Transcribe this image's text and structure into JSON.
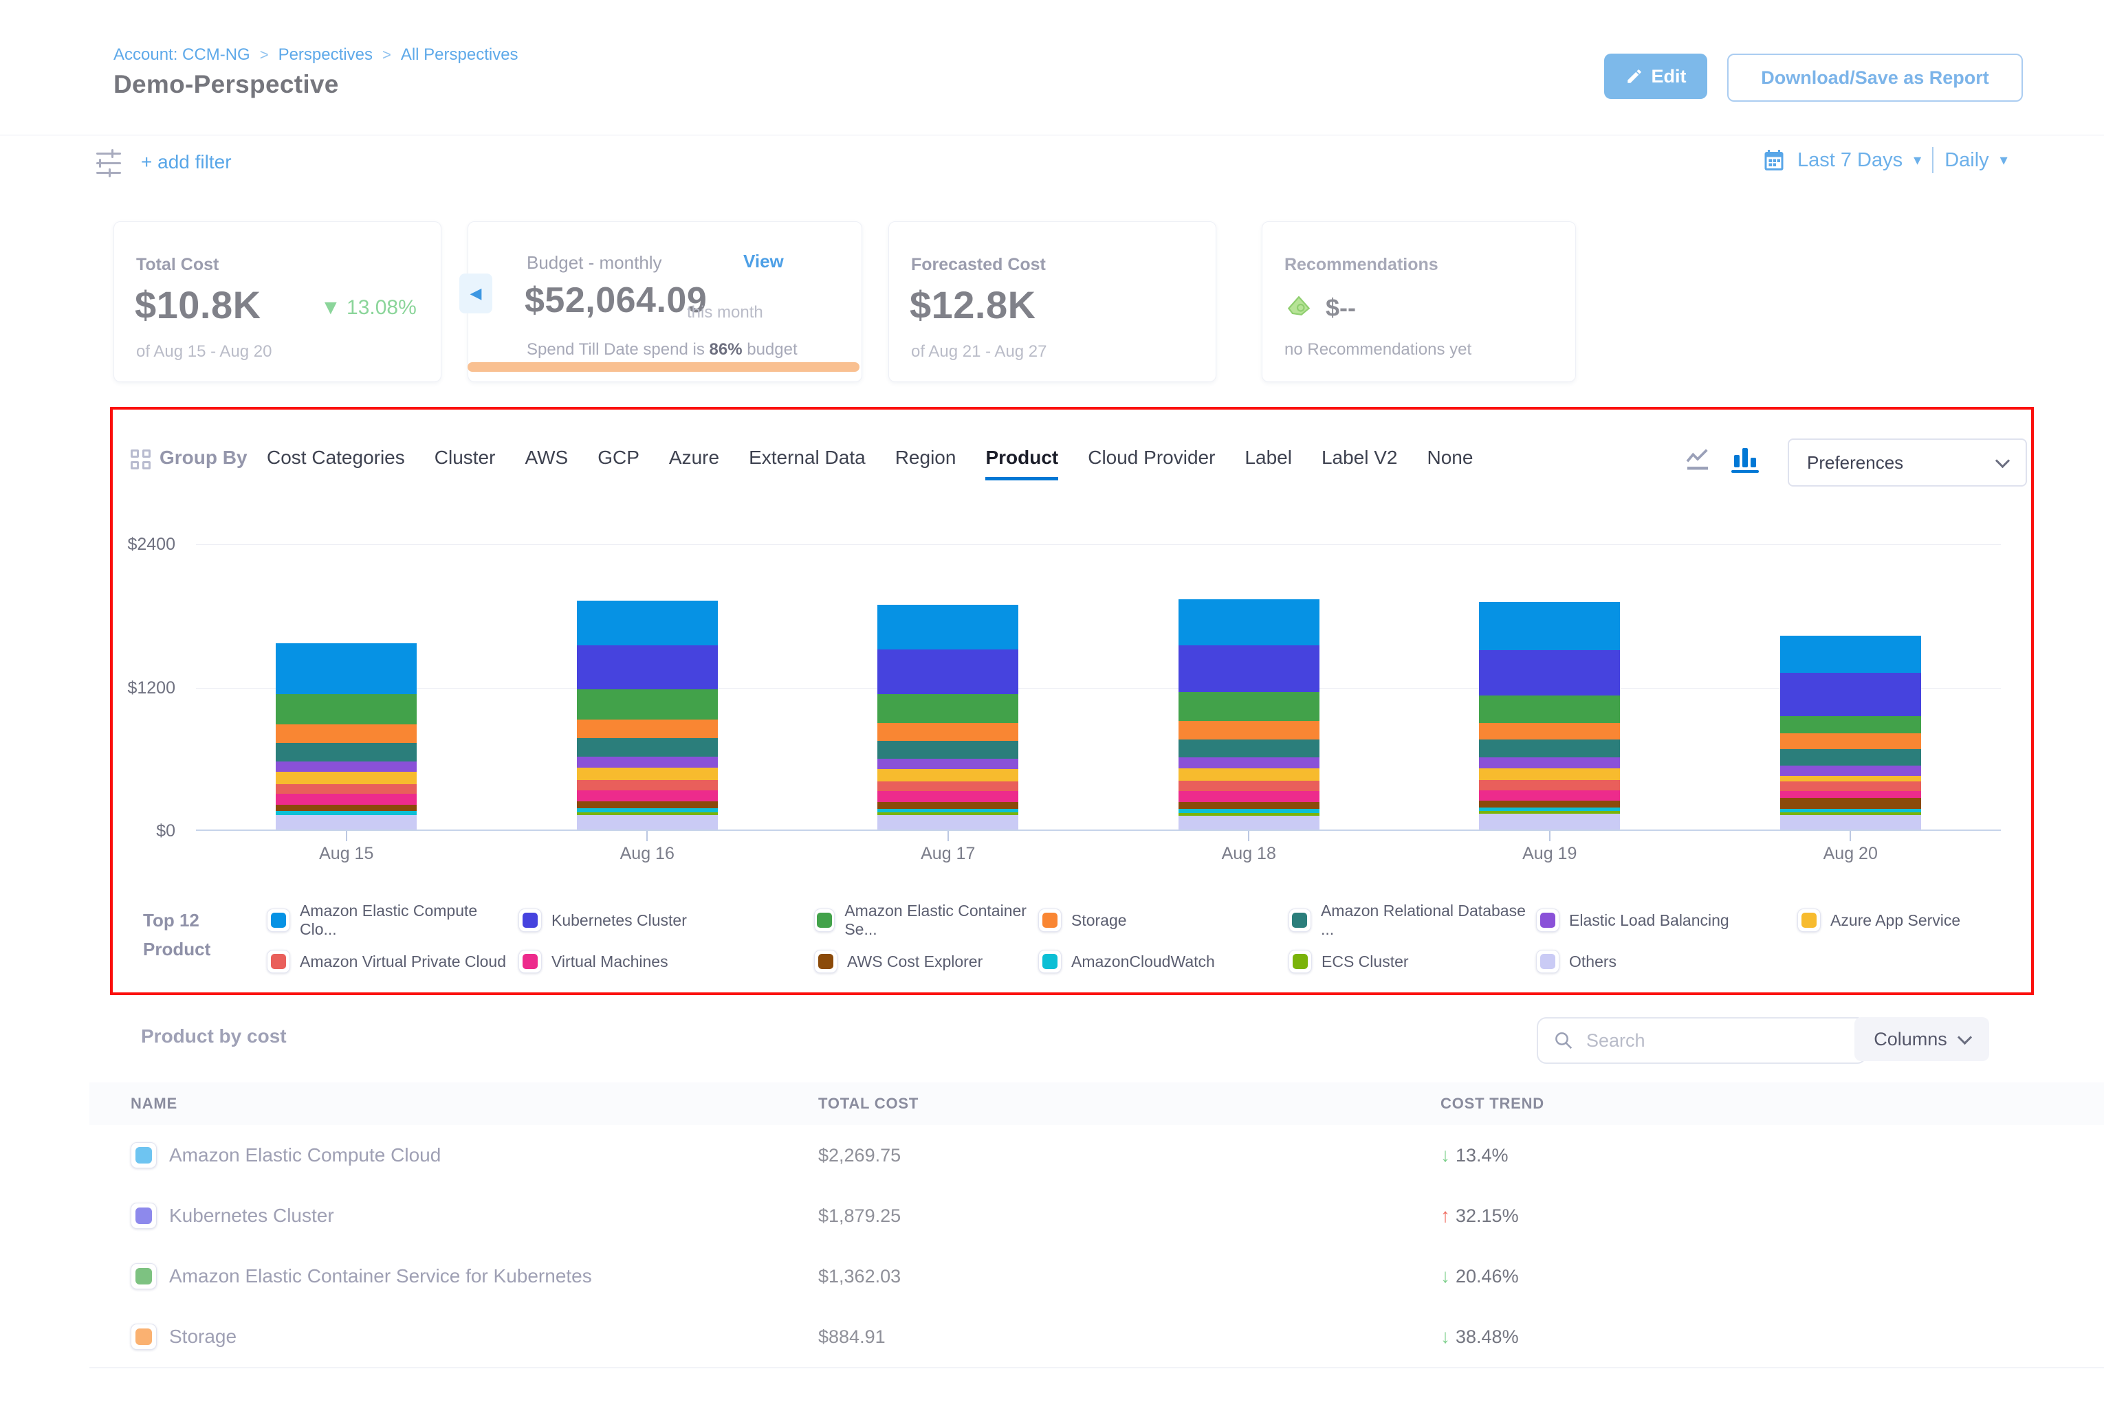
{
  "breadcrumb": {
    "account": "Account: CCM-NG",
    "perspectives": "Perspectives",
    "all_perspectives": "All Perspectives",
    "separator": ">"
  },
  "header": {
    "title": "Demo-Perspective",
    "edit_label": "Edit",
    "download_label": "Download/Save as Report"
  },
  "filter_bar": {
    "add_filter": "+ add filter",
    "date_range": "Last 7 Days",
    "granularity": "Daily"
  },
  "cards": {
    "total_cost": {
      "label": "Total Cost",
      "value": "$10.8K",
      "trend_arrow": "▼",
      "trend": "13.08%",
      "period": "of Aug 15 - Aug 20"
    },
    "budget": {
      "label": "Budget - monthly",
      "view_link": "View",
      "value": "$52,064.09",
      "suffix": "this month",
      "status_prefix": "Spend Till Date spend is",
      "status_pct": "86%",
      "status_suffix": "budget",
      "back_arrow": "◀"
    },
    "forecasted": {
      "label": "Forecasted Cost",
      "value": "$12.8K",
      "period": "of Aug 21 - Aug 27"
    },
    "recommendations": {
      "label": "Recommendations",
      "value": "$--",
      "note": "no Recommendations yet"
    }
  },
  "group_by": {
    "label": "Group By",
    "tabs": [
      "Cost Categories",
      "Cluster",
      "AWS",
      "GCP",
      "Azure",
      "External Data",
      "Region",
      "Product",
      "Cloud Provider",
      "Label",
      "Label V2",
      "None"
    ],
    "active_tab": "Product",
    "preferences_label": "Preferences"
  },
  "chart_data": {
    "type": "bar",
    "stacked": true,
    "categories": [
      "Aug 15",
      "Aug 16",
      "Aug 17",
      "Aug 18",
      "Aug 19",
      "Aug 20"
    ],
    "ylim": [
      0,
      2400
    ],
    "yticks": [
      {
        "label": "$0",
        "value": 0
      },
      {
        "label": "$1200",
        "value": 1200
      },
      {
        "label": "$2400",
        "value": 2400
      }
    ],
    "grid": true,
    "legend_position": "bottom",
    "series": [
      {
        "name": "Amazon Elastic Compute Cloud",
        "color": "#0692e4",
        "values": [
          430,
          375,
          370,
          385,
          400,
          310
        ]
      },
      {
        "name": "Kubernetes Cluster",
        "color": "#4643de",
        "values": [
          0,
          370,
          375,
          390,
          380,
          364
        ]
      },
      {
        "name": "Amazon Elastic Container Service for Kubernetes",
        "color": "#42a24a",
        "values": [
          250,
          253,
          240,
          245,
          230,
          144
        ]
      },
      {
        "name": "Storage",
        "color": "#f98633",
        "values": [
          160,
          155,
          150,
          150,
          140,
          130
        ]
      },
      {
        "name": "Amazon Relational Database Service",
        "color": "#2b7e7b",
        "values": [
          150,
          155,
          150,
          155,
          150,
          140
        ]
      },
      {
        "name": "Elastic Load Balancing",
        "color": "#8a51d8",
        "values": [
          90,
          92,
          90,
          92,
          90,
          85
        ]
      },
      {
        "name": "Azure App Service",
        "color": "#f7bb2e",
        "values": [
          100,
          104,
          100,
          102,
          100,
          45
        ]
      },
      {
        "name": "Amazon Virtual Private Cloud",
        "color": "#e95f5b",
        "values": [
          85,
          86,
          85,
          86,
          85,
          80
        ]
      },
      {
        "name": "Virtual Machines",
        "color": "#ed2b8c",
        "values": [
          90,
          92,
          90,
          90,
          88,
          60
        ]
      },
      {
        "name": "AWS Cost Explorer",
        "color": "#8b4a0a",
        "values": [
          55,
          58,
          55,
          58,
          55,
          90
        ]
      },
      {
        "name": "AmazonCloudWatch",
        "color": "#0cbfd5",
        "values": [
          33,
          35,
          33,
          34,
          33,
          30
        ]
      },
      {
        "name": "ECS Cluster",
        "color": "#7ab30b",
        "values": [
          0,
          23,
          22,
          22,
          20,
          25
        ]
      },
      {
        "name": "Others",
        "color": "#cacbf5",
        "values": [
          120,
          121,
          120,
          118,
          134,
          120
        ]
      }
    ]
  },
  "legend": {
    "title_line1": "Top 12",
    "title_line2": "Product",
    "items": [
      {
        "label": "Amazon Elastic Compute Clo...",
        "color": "#0692e4"
      },
      {
        "label": "Kubernetes Cluster",
        "color": "#4643de"
      },
      {
        "label": "Amazon Elastic Container Se...",
        "color": "#42a24a"
      },
      {
        "label": "Storage",
        "color": "#f98633"
      },
      {
        "label": "Amazon Relational Database ...",
        "color": "#2b7e7b"
      },
      {
        "label": "Elastic Load Balancing",
        "color": "#8a51d8"
      },
      {
        "label": "Azure App Service",
        "color": "#f7bb2e"
      },
      {
        "label": "Amazon Virtual Private Cloud",
        "color": "#e95f5b"
      },
      {
        "label": "Virtual Machines",
        "color": "#ed2b8c"
      },
      {
        "label": "AWS Cost Explorer",
        "color": "#8b4a0a"
      },
      {
        "label": "AmazonCloudWatch",
        "color": "#0cbfd5"
      },
      {
        "label": "ECS Cluster",
        "color": "#7ab30b"
      },
      {
        "label": "Others",
        "color": "#cacbf5"
      }
    ]
  },
  "table": {
    "title": "Product by cost",
    "search_placeholder": "Search",
    "columns_label": "Columns",
    "headers": [
      "NAME",
      "TOTAL COST",
      "COST TREND"
    ],
    "rows": [
      {
        "name": "Amazon Elastic Compute Cloud",
        "swatch": "#6ec4f1",
        "total_cost": "$2,269.75",
        "trend": "13.4%",
        "direction": "down"
      },
      {
        "name": "Kubernetes Cluster",
        "swatch": "#8d89ec",
        "total_cost": "$1,879.25",
        "trend": "32.15%",
        "direction": "up"
      },
      {
        "name": "Amazon Elastic Container Service for Kubernetes",
        "swatch": "#7dc281",
        "total_cost": "$1,362.03",
        "trend": "20.46%",
        "direction": "down"
      },
      {
        "name": "Storage",
        "swatch": "#fab171",
        "total_cost": "$884.91",
        "trend": "38.48%",
        "direction": "down"
      }
    ]
  },
  "colors": {
    "link_blue": "#58a6e8",
    "edit_button_bg": "#7db9ea",
    "active_tab_underline": "#0277d4",
    "budget_progress_orange": "#f9c091",
    "trend_up_red": "#ef6a5e",
    "trend_down_green": "#7fd08d",
    "annotation_red": "#fb0f0c"
  }
}
